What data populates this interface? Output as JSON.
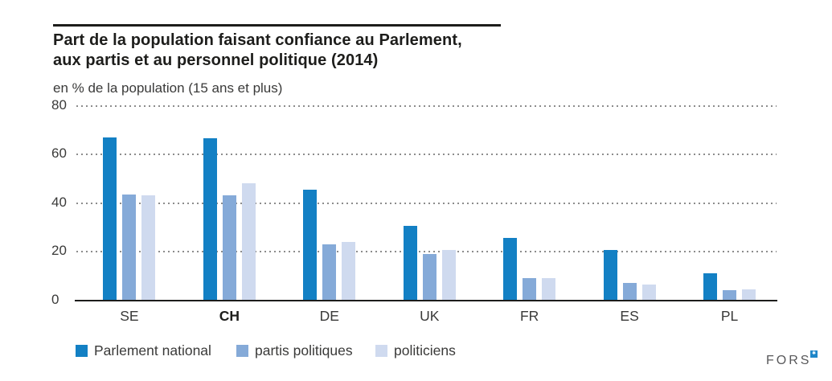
{
  "header": {
    "title": "Part de la population faisant confiance au Parlement,\naux partis et au personnel politique (2014)",
    "subtitle": "en % de la population (15 ans et plus)"
  },
  "chart_data": {
    "type": "bar",
    "title": "Part de la population faisant confiance au Parlement, aux partis et au personnel politique (2014)",
    "unit_label": "en % de la population (15 ans et plus)",
    "categories": [
      "SE",
      "CH",
      "DE",
      "UK",
      "FR",
      "ES",
      "PL"
    ],
    "bold_category": "CH",
    "series": [
      {
        "name": "Parlement national",
        "color": "#1380c4",
        "values": [
          67,
          66.5,
          45.5,
          30.5,
          25.5,
          20.5,
          11
        ]
      },
      {
        "name": "partis politiques",
        "color": "#85aad8",
        "values": [
          43.5,
          43,
          23,
          19,
          9,
          7,
          4
        ]
      },
      {
        "name": "politiciens",
        "color": "#cfdaef",
        "values": [
          43,
          48,
          24,
          20.5,
          9,
          6.5,
          4.5
        ]
      }
    ],
    "ylim": [
      0,
      80
    ],
    "y_ticks": [
      0,
      20,
      40,
      60,
      80
    ],
    "grid": "horizontal-dotted",
    "legend_position": "bottom"
  },
  "footer": {
    "logo_text": "FORS",
    "logo_mark": "✱"
  },
  "colors": {
    "axis": "#1d1d1b",
    "gridline": "#8c8c8c",
    "text": "#3a3a39",
    "logo_gray": "#58585a",
    "logo_blue": "#1e86c8"
  }
}
